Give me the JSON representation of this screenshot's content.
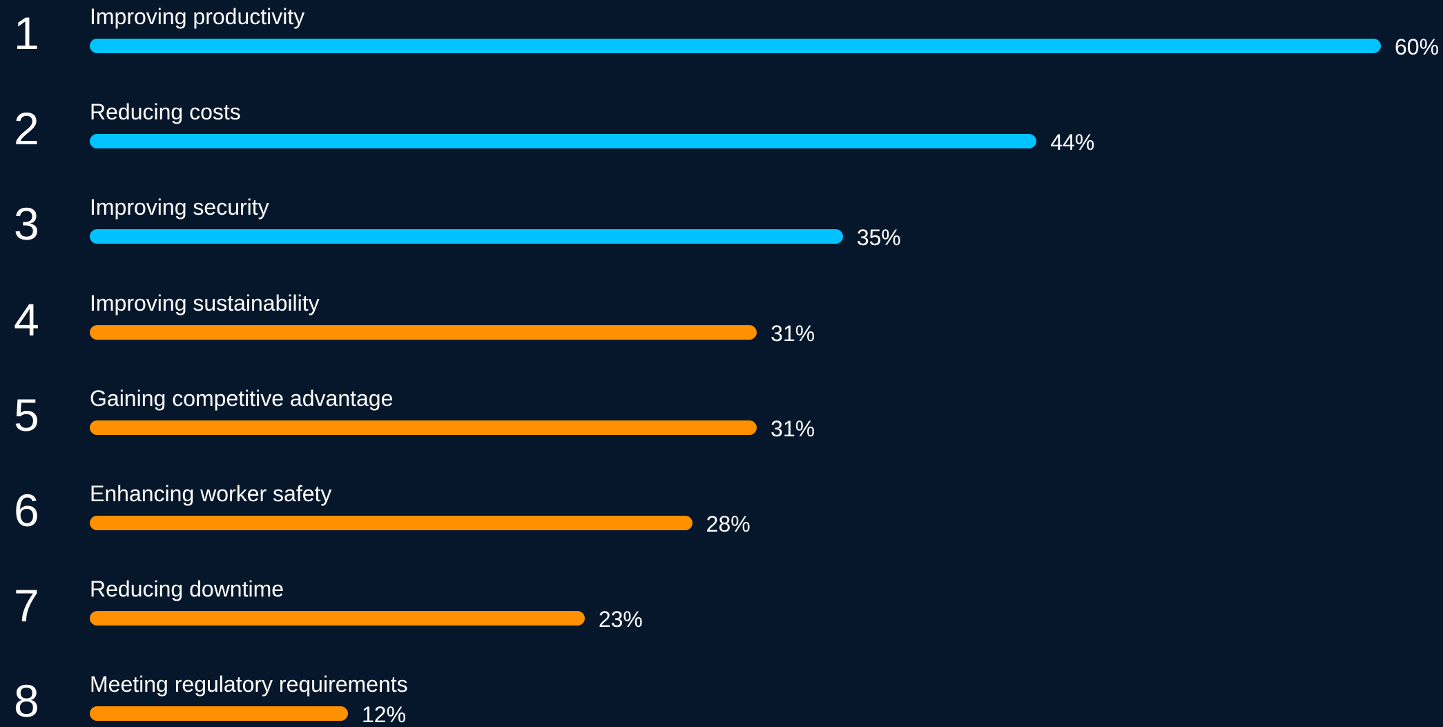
{
  "chart_data": {
    "type": "bar",
    "orientation": "horizontal",
    "title": "",
    "xlabel": "",
    "ylabel": "",
    "xlim": [
      0,
      60
    ],
    "grid": false,
    "legend": "none",
    "value_suffix": "%",
    "colors": {
      "top": "#00c3ff",
      "rest": "#ff9000"
    },
    "bars": [
      {
        "rank": "1",
        "category": "Improving productivity",
        "value": 60,
        "label": "60%",
        "color": "#00c3ff"
      },
      {
        "rank": "2",
        "category": "Reducing costs",
        "value": 44,
        "label": "44%",
        "color": "#00c3ff"
      },
      {
        "rank": "3",
        "category": "Improving security",
        "value": 35,
        "label": "35%",
        "color": "#00c3ff"
      },
      {
        "rank": "4",
        "category": "Improving sustainability",
        "value": 31,
        "label": "31%",
        "color": "#ff9000"
      },
      {
        "rank": "5",
        "category": "Gaining competitive advantage",
        "value": 31,
        "label": "31%",
        "color": "#ff9000"
      },
      {
        "rank": "6",
        "category": "Enhancing worker safety",
        "value": 28,
        "label": "28%",
        "color": "#ff9000"
      },
      {
        "rank": "7",
        "category": "Reducing downtime",
        "value": 23,
        "label": "23%",
        "color": "#ff9000"
      },
      {
        "rank": "8",
        "category": "Meeting regulatory requirements",
        "value": 12,
        "label": "12%",
        "color": "#ff9000"
      }
    ]
  }
}
